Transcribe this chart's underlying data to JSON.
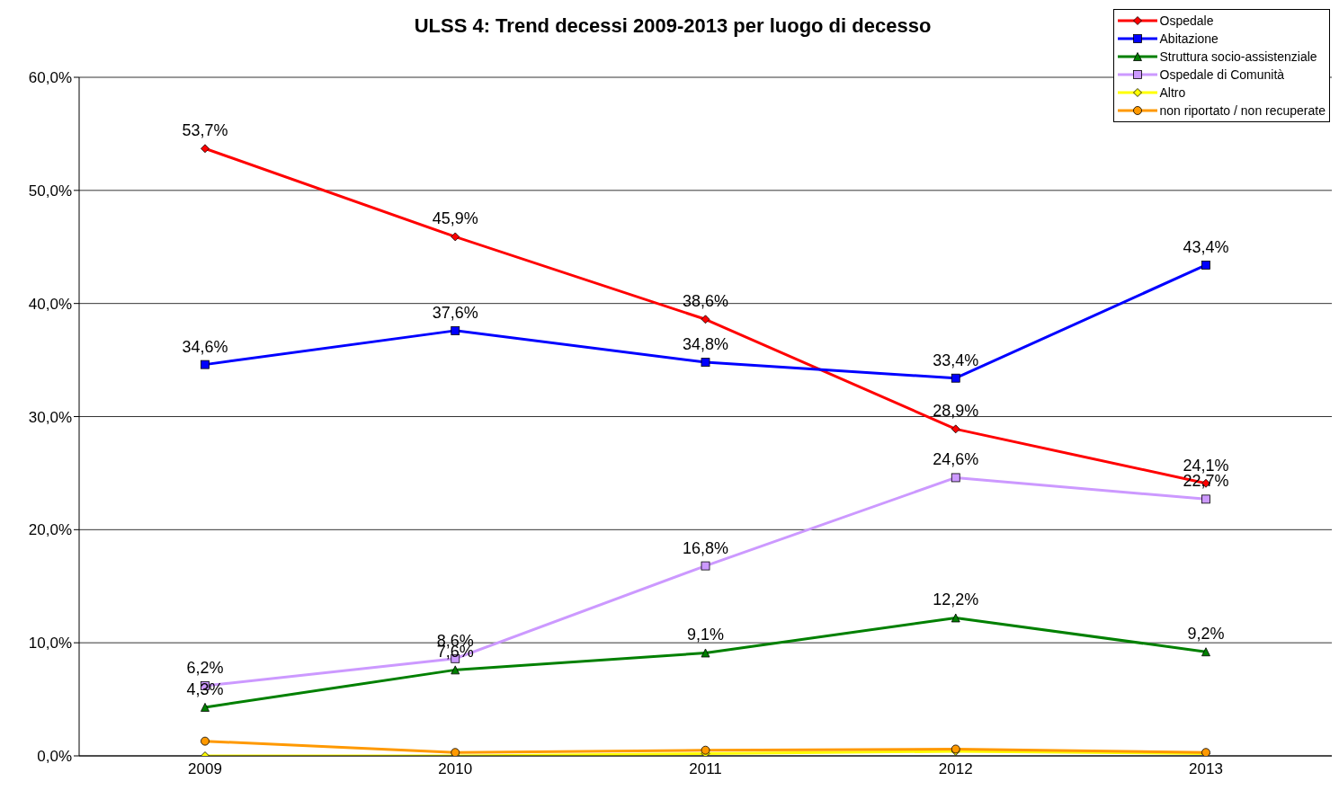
{
  "chart_data": {
    "type": "line",
    "title": "ULSS 4: Trend decessi 2009-2013 per luogo di decesso",
    "categories": [
      "2009",
      "2010",
      "2011",
      "2012",
      "2013"
    ],
    "series": [
      {
        "name": "Ospedale",
        "color": "#ff0000",
        "marker": "diamond",
        "values": [
          53.7,
          45.9,
          38.6,
          28.9,
          24.1
        ],
        "value_labels": [
          "53,7%",
          "45,9%",
          "38,6%",
          "28,9%",
          "24,1%"
        ]
      },
      {
        "name": "Abitazione",
        "color": "#0000ff",
        "marker": "square",
        "values": [
          34.6,
          37.6,
          34.8,
          33.4,
          43.4
        ],
        "value_labels": [
          "34,6%",
          "37,6%",
          "34,8%",
          "33,4%",
          "43,4%"
        ]
      },
      {
        "name": "Struttura socio-assistenziale",
        "color": "#008000",
        "marker": "triangle",
        "values": [
          4.3,
          7.6,
          9.1,
          12.2,
          9.2
        ],
        "value_labels": [
          "4,3%",
          "7,6%",
          "9,1%",
          "12,2%",
          "9,2%"
        ]
      },
      {
        "name": "Ospedale di Comunità",
        "color": "#cc99ff",
        "marker": "square",
        "values": [
          6.2,
          8.6,
          16.8,
          24.6,
          22.7
        ],
        "value_labels": [
          "6,2%",
          "8,6%",
          "16,8%",
          "24,6%",
          "22,7%"
        ]
      },
      {
        "name": "Altro",
        "color": "#ffff00",
        "marker": "diamond",
        "values": [
          0.0,
          0.0,
          0.2,
          0.4,
          0.2
        ]
      },
      {
        "name": "non riportato / non recuperate",
        "color": "#ff9900",
        "marker": "circle",
        "values": [
          1.3,
          0.3,
          0.5,
          0.6,
          0.3
        ]
      }
    ],
    "ylim": [
      0,
      60
    ],
    "yticks": [
      {
        "value": 0,
        "label": "0,0%"
      },
      {
        "value": 10,
        "label": "10,0%"
      },
      {
        "value": 20,
        "label": "20,0%"
      },
      {
        "value": 30,
        "label": "30,0%"
      },
      {
        "value": 40,
        "label": "40,0%"
      },
      {
        "value": 50,
        "label": "50,0%"
      },
      {
        "value": 60,
        "label": "60,0%"
      }
    ],
    "grid": "y",
    "legend": "top right",
    "line_style": "solid"
  }
}
